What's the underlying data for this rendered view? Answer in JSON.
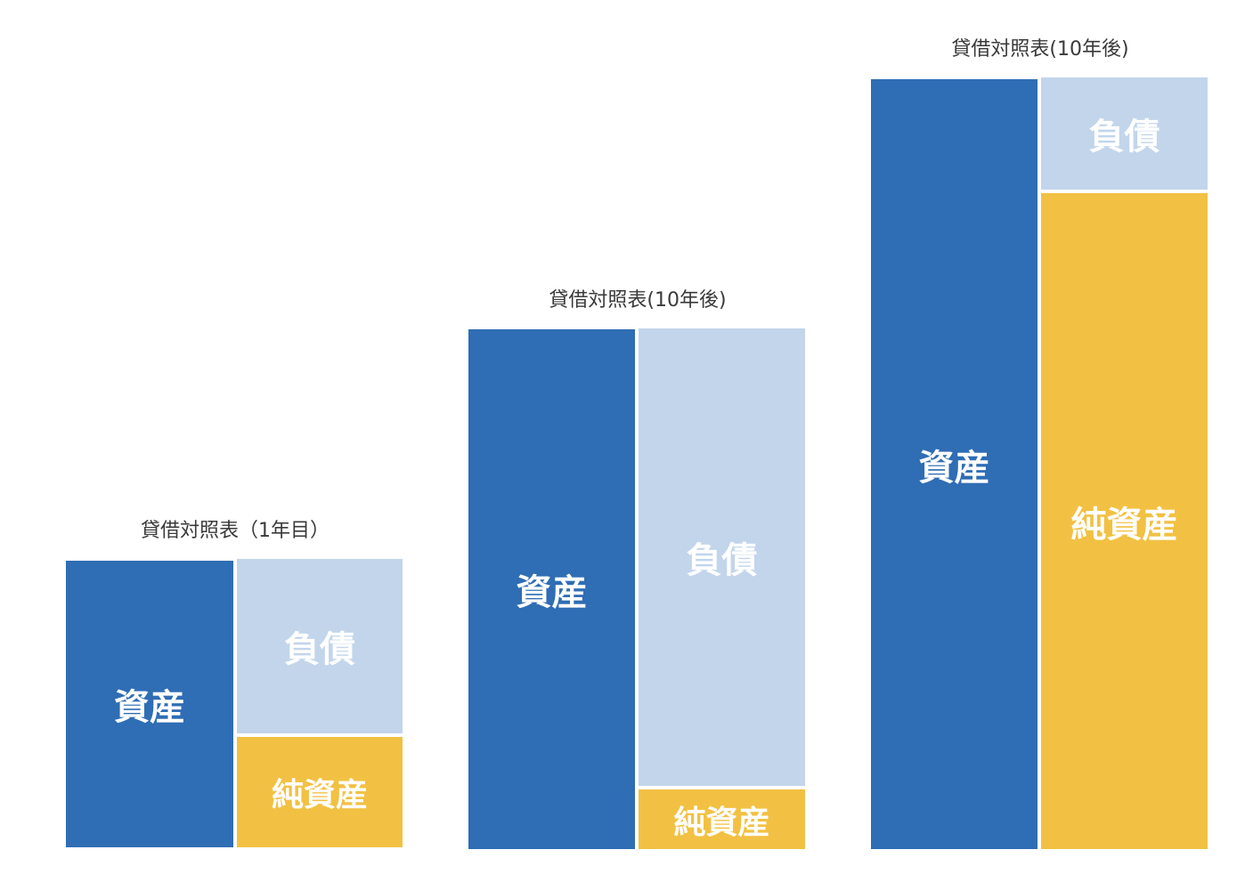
{
  "sheets": [
    {
      "title": "貸借対照表（1年目）",
      "assets_label": "資産",
      "liabilities_label": "負債",
      "equity_label": "純資産"
    },
    {
      "title": "貸借対照表(10年後)",
      "assets_label": "資産",
      "liabilities_label": "負債",
      "equity_label": "純資産"
    },
    {
      "title": "貸借対照表(10年後)",
      "assets_label": "資産",
      "liabilities_label": "負債",
      "equity_label": "純資産"
    }
  ],
  "colors": {
    "assets": "#2f6db4",
    "liabilities": "#c2d5eb",
    "equity": "#f2c143",
    "title_text": "#3a3a3a",
    "block_text": "#ffffff"
  }
}
